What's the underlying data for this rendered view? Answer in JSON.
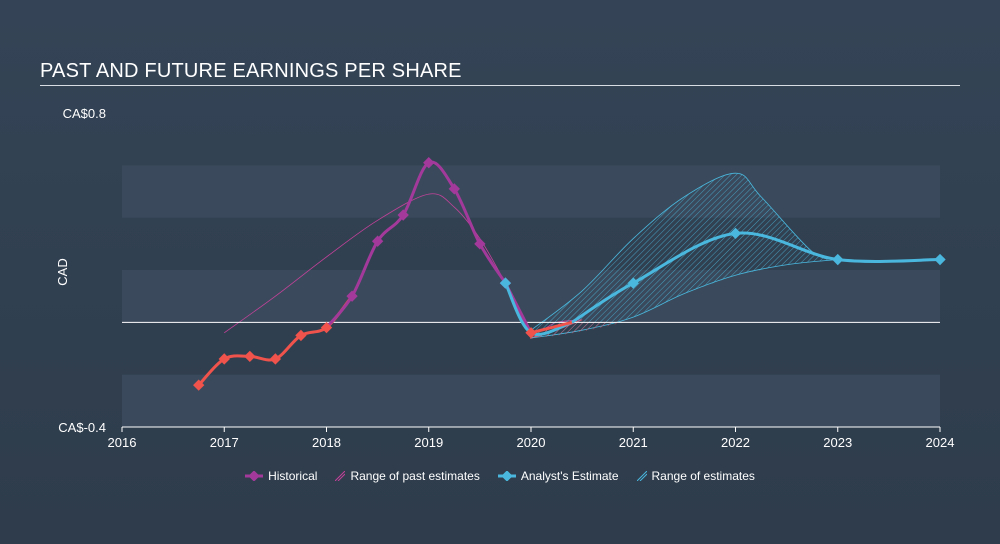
{
  "title": "PAST AND FUTURE EARNINGS PER SHARE",
  "chart_data": {
    "type": "line",
    "ylabel": "CAD",
    "y_tick_labels": [
      "CA$0.8",
      "CA$-0.4"
    ],
    "ylim": [
      -0.4,
      0.8
    ],
    "xlim": [
      2016.0,
      2024.0
    ],
    "x_ticks": [
      "2016",
      "2017",
      "2018",
      "2019",
      "2020",
      "2021",
      "2022",
      "2023",
      "2024"
    ],
    "grid": "horizontal bands",
    "legend": "bottom-center",
    "zero_line": 0,
    "series": [
      {
        "name": "Historical",
        "color_negative": "#f0534b",
        "color_positive": "#a33a9b",
        "points": [
          [
            2016.75,
            -0.24
          ],
          [
            2017.0,
            -0.14
          ],
          [
            2017.25,
            -0.13
          ],
          [
            2017.5,
            -0.14
          ],
          [
            2017.75,
            -0.05
          ],
          [
            2018.0,
            -0.02
          ],
          [
            2018.25,
            0.1
          ],
          [
            2018.5,
            0.31
          ],
          [
            2018.75,
            0.41
          ],
          [
            2019.0,
            0.61
          ],
          [
            2019.25,
            0.51
          ],
          [
            2019.5,
            0.3
          ],
          [
            2019.75,
            0.15
          ],
          [
            2020.0,
            -0.04
          ]
        ]
      },
      {
        "name": "Range of past estimates",
        "color": "#c4419a",
        "upper": [
          [
            2017.0,
            -0.04
          ],
          [
            2017.5,
            0.1
          ],
          [
            2018.0,
            0.25
          ],
          [
            2018.5,
            0.39
          ],
          [
            2019.0,
            0.49
          ],
          [
            2019.25,
            0.44
          ],
          [
            2019.5,
            0.32
          ],
          [
            2019.75,
            0.15
          ],
          [
            2020.0,
            -0.03
          ],
          [
            2020.25,
            0.0
          ],
          [
            2020.5,
            0.01
          ]
        ],
        "lower": [
          [
            2020.5,
            0.01
          ],
          [
            2020.25,
            -0.03
          ],
          [
            2020.0,
            -0.06
          ]
        ]
      },
      {
        "name": "Analyst's Estimate",
        "color": "#4ab8de",
        "points": [
          [
            2019.75,
            0.15
          ],
          [
            2020.0,
            -0.04
          ],
          [
            2020.4,
            0.0
          ],
          [
            2021.0,
            0.15
          ],
          [
            2022.0,
            0.34
          ],
          [
            2023.0,
            0.24
          ],
          [
            2024.0,
            0.24
          ]
        ]
      },
      {
        "name": "Range of estimates",
        "color": "#4ab8de",
        "upper": [
          [
            2020.0,
            -0.03
          ],
          [
            2020.5,
            0.12
          ],
          [
            2021.0,
            0.32
          ],
          [
            2021.5,
            0.48
          ],
          [
            2022.0,
            0.57
          ],
          [
            2022.25,
            0.48
          ],
          [
            2022.75,
            0.27
          ],
          [
            2023.0,
            0.24
          ]
        ],
        "lower": [
          [
            2023.0,
            0.24
          ],
          [
            2022.5,
            0.22
          ],
          [
            2022.0,
            0.18
          ],
          [
            2021.5,
            0.11
          ],
          [
            2021.0,
            0.02
          ],
          [
            2020.5,
            -0.03
          ],
          [
            2020.0,
            -0.06
          ]
        ]
      }
    ]
  }
}
